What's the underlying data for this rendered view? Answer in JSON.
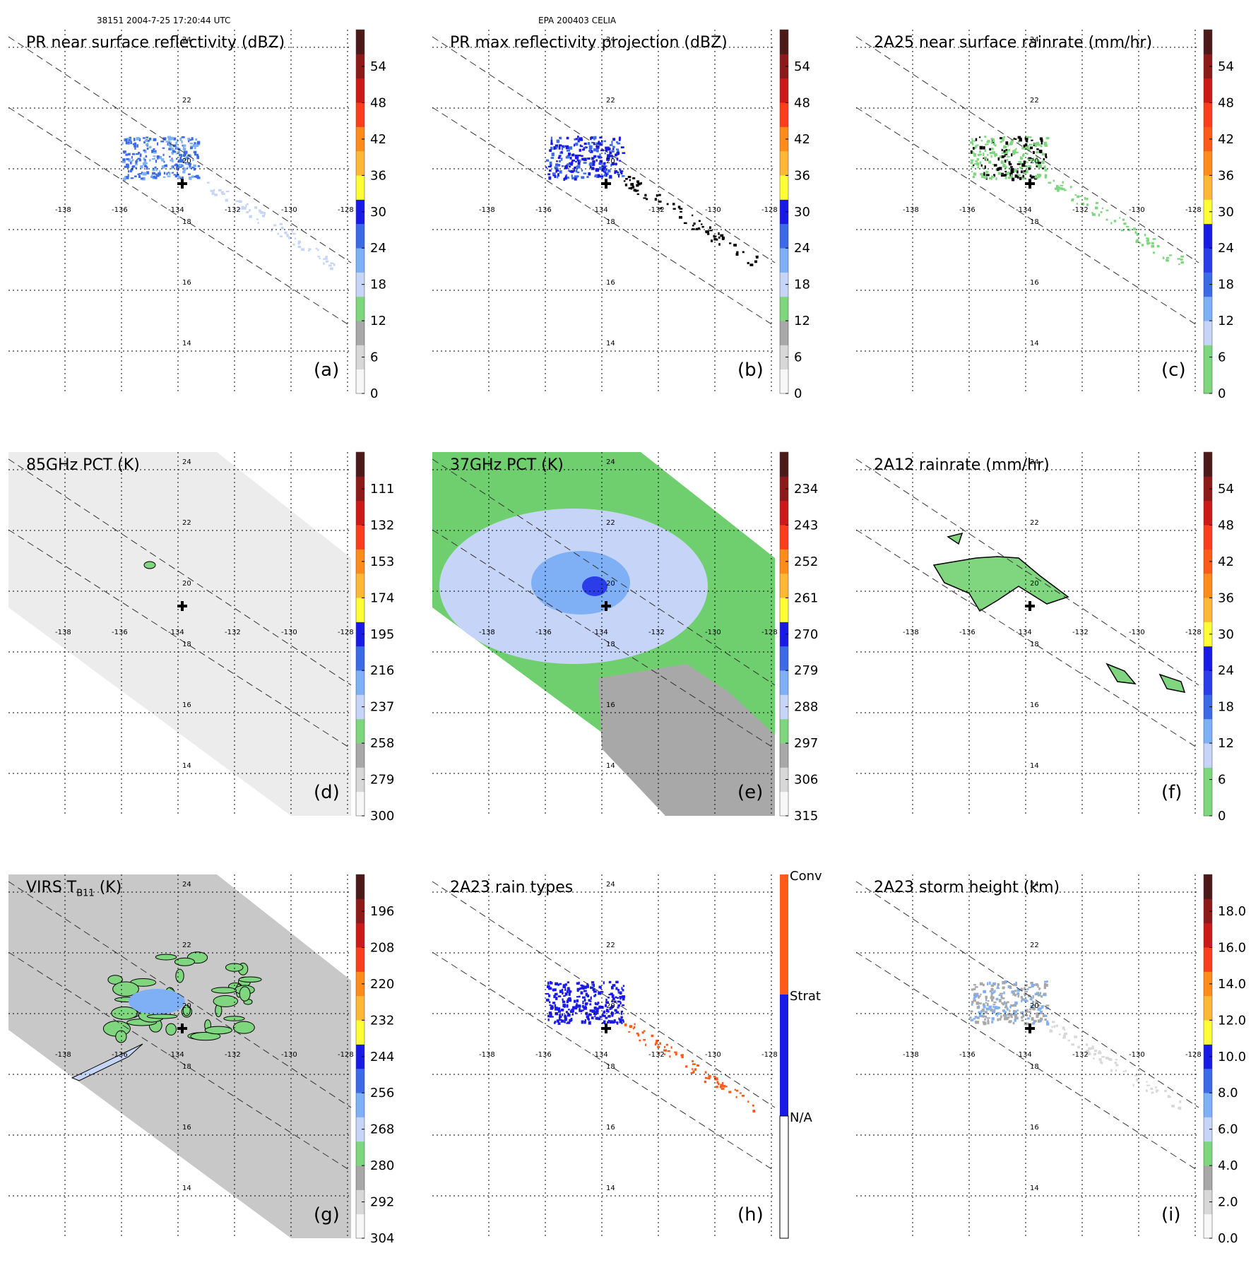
{
  "header": {
    "orbit_time": "38151 2004-7-25 17:20:44 UTC",
    "storm": "EPA 200403 CELIA"
  },
  "axes": {
    "lon_labels": [
      "-138",
      "-136",
      "-134",
      "-132",
      "-130",
      "-128"
    ],
    "lat_labels": [
      "24",
      "22",
      "20",
      "18",
      "16",
      "14"
    ]
  },
  "panels": [
    {
      "label": "(a)",
      "title": "PR near surface reflectivity (dBZ)",
      "colorbar": [
        "54",
        "48",
        "42",
        "36",
        "30",
        "24",
        "18",
        "12",
        "6",
        "0"
      ],
      "colors": [
        "#f7f7f7",
        "#d8d8d8",
        "#a8a8a8",
        "#7fd67f",
        "#c6d4f7",
        "#7fb0f5",
        "#3d6be8",
        "#1a1ae6",
        "#ffff33",
        "#ffb833",
        "#ff8c1a",
        "#ff3d1a",
        "#cc1a1a",
        "#8c1a1a",
        "#4d1a1a"
      ],
      "field": "pr"
    },
    {
      "label": "(b)",
      "title": "PR max reflectivity projection (dBZ)",
      "colorbar": [
        "54",
        "48",
        "42",
        "36",
        "30",
        "24",
        "18",
        "12",
        "6",
        "0"
      ],
      "colors": [
        "#f7f7f7",
        "#d8d8d8",
        "#a8a8a8",
        "#7fd67f",
        "#c6d4f7",
        "#7fb0f5",
        "#3d6be8",
        "#1a1ae6",
        "#ffff33",
        "#ffb833",
        "#ff8c1a",
        "#ff3d1a",
        "#cc1a1a",
        "#8c1a1a",
        "#4d1a1a"
      ],
      "field": "prmax"
    },
    {
      "label": "(c)",
      "title": "2A25 near surface rainrate (mm/hr)",
      "colorbar": [
        "54",
        "48",
        "42",
        "36",
        "30",
        "24",
        "18",
        "12",
        "6",
        "0"
      ],
      "colors": [
        "#7fd67f",
        "#7fd67f",
        "#c6d4f7",
        "#7fb0f5",
        "#3d6be8",
        "#2a3de8",
        "#1a1ae6",
        "#ffff33",
        "#ffb833",
        "#ff8c1a",
        "#ff5a1a",
        "#ff3d1a",
        "#cc1a1a",
        "#8c1a1a",
        "#4d1a1a"
      ],
      "field": "rain"
    },
    {
      "label": "(d)",
      "title": "85GHz PCT (K)",
      "colorbar": [
        "111",
        "132",
        "153",
        "174",
        "195",
        "216",
        "237",
        "258",
        "279",
        "300"
      ],
      "colors": [
        "#f7f7f7",
        "#d8d8d8",
        "#a8a8a8",
        "#7fd67f",
        "#c6d4f7",
        "#7fb0f5",
        "#3d6be8",
        "#1a1ae6",
        "#ffff33",
        "#ffb833",
        "#ff8c1a",
        "#ff3d1a",
        "#cc1a1a",
        "#8c1a1a",
        "#4d1a1a"
      ],
      "field": "pct85"
    },
    {
      "label": "(e)",
      "title": "37GHz PCT (K)",
      "colorbar": [
        "234",
        "243",
        "252",
        "261",
        "270",
        "279",
        "288",
        "297",
        "306",
        "315"
      ],
      "colors": [
        "#f7f7f7",
        "#d8d8d8",
        "#a8a8a8",
        "#7fd67f",
        "#c6d4f7",
        "#7fb0f5",
        "#3d6be8",
        "#1a1ae6",
        "#ffff33",
        "#ffb833",
        "#ff8c1a",
        "#ff3d1a",
        "#cc1a1a",
        "#8c1a1a",
        "#4d1a1a"
      ],
      "field": "pct37"
    },
    {
      "label": "(f)",
      "title": "2A12 rainrate (mm/hr)",
      "colorbar": [
        "54",
        "48",
        "42",
        "36",
        "30",
        "24",
        "18",
        "12",
        "6",
        "0"
      ],
      "colors": [
        "#7fd67f",
        "#7fd67f",
        "#c6d4f7",
        "#7fb0f5",
        "#3d6be8",
        "#2a3de8",
        "#1a1ae6",
        "#ffff33",
        "#ffb833",
        "#ff8c1a",
        "#ff5a1a",
        "#ff3d1a",
        "#cc1a1a",
        "#8c1a1a",
        "#4d1a1a"
      ],
      "field": "rain12"
    },
    {
      "label": "(g)",
      "title": "VIRS T",
      "title_sub": "B11",
      "title_suffix": " (K)",
      "colorbar": [
        "196",
        "208",
        "220",
        "232",
        "244",
        "256",
        "268",
        "280",
        "292",
        "304"
      ],
      "colors": [
        "#f7f7f7",
        "#d8d8d8",
        "#a8a8a8",
        "#7fd67f",
        "#c6d4f7",
        "#7fb0f5",
        "#3d6be8",
        "#1a1ae6",
        "#ffff33",
        "#ffb833",
        "#ff8c1a",
        "#ff3d1a",
        "#cc1a1a",
        "#8c1a1a",
        "#4d1a1a"
      ],
      "field": "virs"
    },
    {
      "label": "(h)",
      "title": "2A23 rain types",
      "colorbar": [
        "Conv",
        "Strat",
        "N/A"
      ],
      "colors": [
        "#ffffff",
        "#1a1ae6",
        "#ff5a1a"
      ],
      "field": "types"
    },
    {
      "label": "(i)",
      "title": "2A23 storm height (km)",
      "colorbar": [
        "18.0",
        "16.0",
        "14.0",
        "12.0",
        "10.0",
        "8.0",
        "6.0",
        "4.0",
        "2.0",
        "0.0"
      ],
      "colors": [
        "#f7f7f7",
        "#d8d8d8",
        "#a8a8a8",
        "#7fd67f",
        "#c6d4f7",
        "#7fb0f5",
        "#3d6be8",
        "#1a1ae6",
        "#ffff33",
        "#ffb833",
        "#ff8c1a",
        "#ff3d1a",
        "#cc1a1a",
        "#8c1a1a",
        "#4d1a1a"
      ],
      "field": "height"
    }
  ]
}
